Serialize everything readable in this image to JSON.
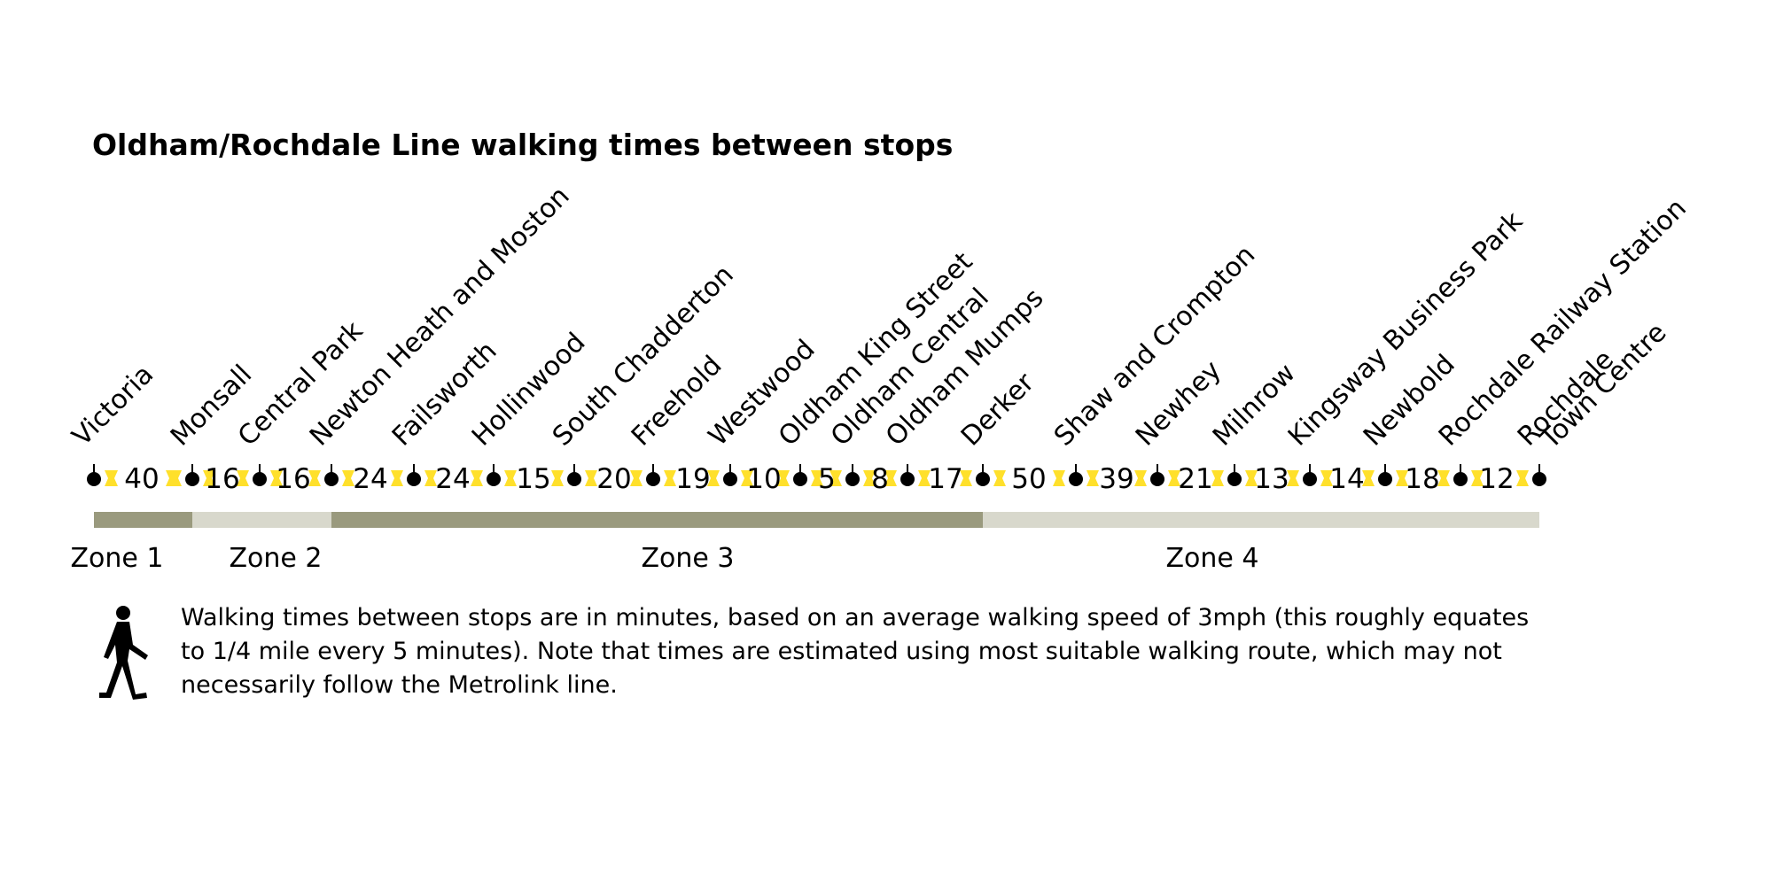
{
  "title": "Oldham/Rochdale Line walking times between stops",
  "stops": [
    {
      "name": "Victoria"
    },
    {
      "name": "Monsall"
    },
    {
      "name": "Central Park"
    },
    {
      "name": "Newton Heath and Moston"
    },
    {
      "name": "Failsworth"
    },
    {
      "name": "Hollinwood"
    },
    {
      "name": "South Chadderton"
    },
    {
      "name": "Freehold"
    },
    {
      "name": "Westwood"
    },
    {
      "name": "Oldham King Street"
    },
    {
      "name": "Oldham Central"
    },
    {
      "name": "Oldham Mumps"
    },
    {
      "name": "Derker"
    },
    {
      "name": "Shaw and Crompton"
    },
    {
      "name": "Newhey"
    },
    {
      "name": "Milnrow"
    },
    {
      "name": "Kingsway Business Park"
    },
    {
      "name": "Newbold"
    },
    {
      "name": "Rochdale Railway Station"
    },
    {
      "name": "Rochdale",
      "line2": "Town Centre"
    }
  ],
  "walking_times": [
    "40",
    "16",
    "16",
    "24",
    "24",
    "15",
    "20",
    "19",
    "10",
    "5",
    "8",
    "17",
    "50",
    "39",
    "21",
    "13",
    "14",
    "18",
    "12"
  ],
  "zones": [
    {
      "label": "Zone 1",
      "from_stop": 0,
      "to_stop": 1,
      "shade": "dark"
    },
    {
      "label": "Zone 2",
      "from_stop": 1,
      "to_stop": 3,
      "shade": "light"
    },
    {
      "label": "Zone 3",
      "from_stop": 3,
      "to_stop": 12,
      "shade": "dark"
    },
    {
      "label": "Zone 4",
      "from_stop": 12,
      "to_stop": 19,
      "shade": "light"
    }
  ],
  "footnote": {
    "lines": [
      "Walking times between stops are in minutes, based on an average walking speed of 3mph (this roughly equates",
      "to 1/4 mile every 5 minutes). Note that times are estimated using most suitable walking route, which may not",
      "necessarily follow the Metrolink line."
    ],
    "icon": "walking-person-icon"
  },
  "colors": {
    "yellow": "#FFE02B",
    "zone_dark": "#9A9A7E",
    "zone_light": "#D8D8CC",
    "stop": "#000000"
  }
}
